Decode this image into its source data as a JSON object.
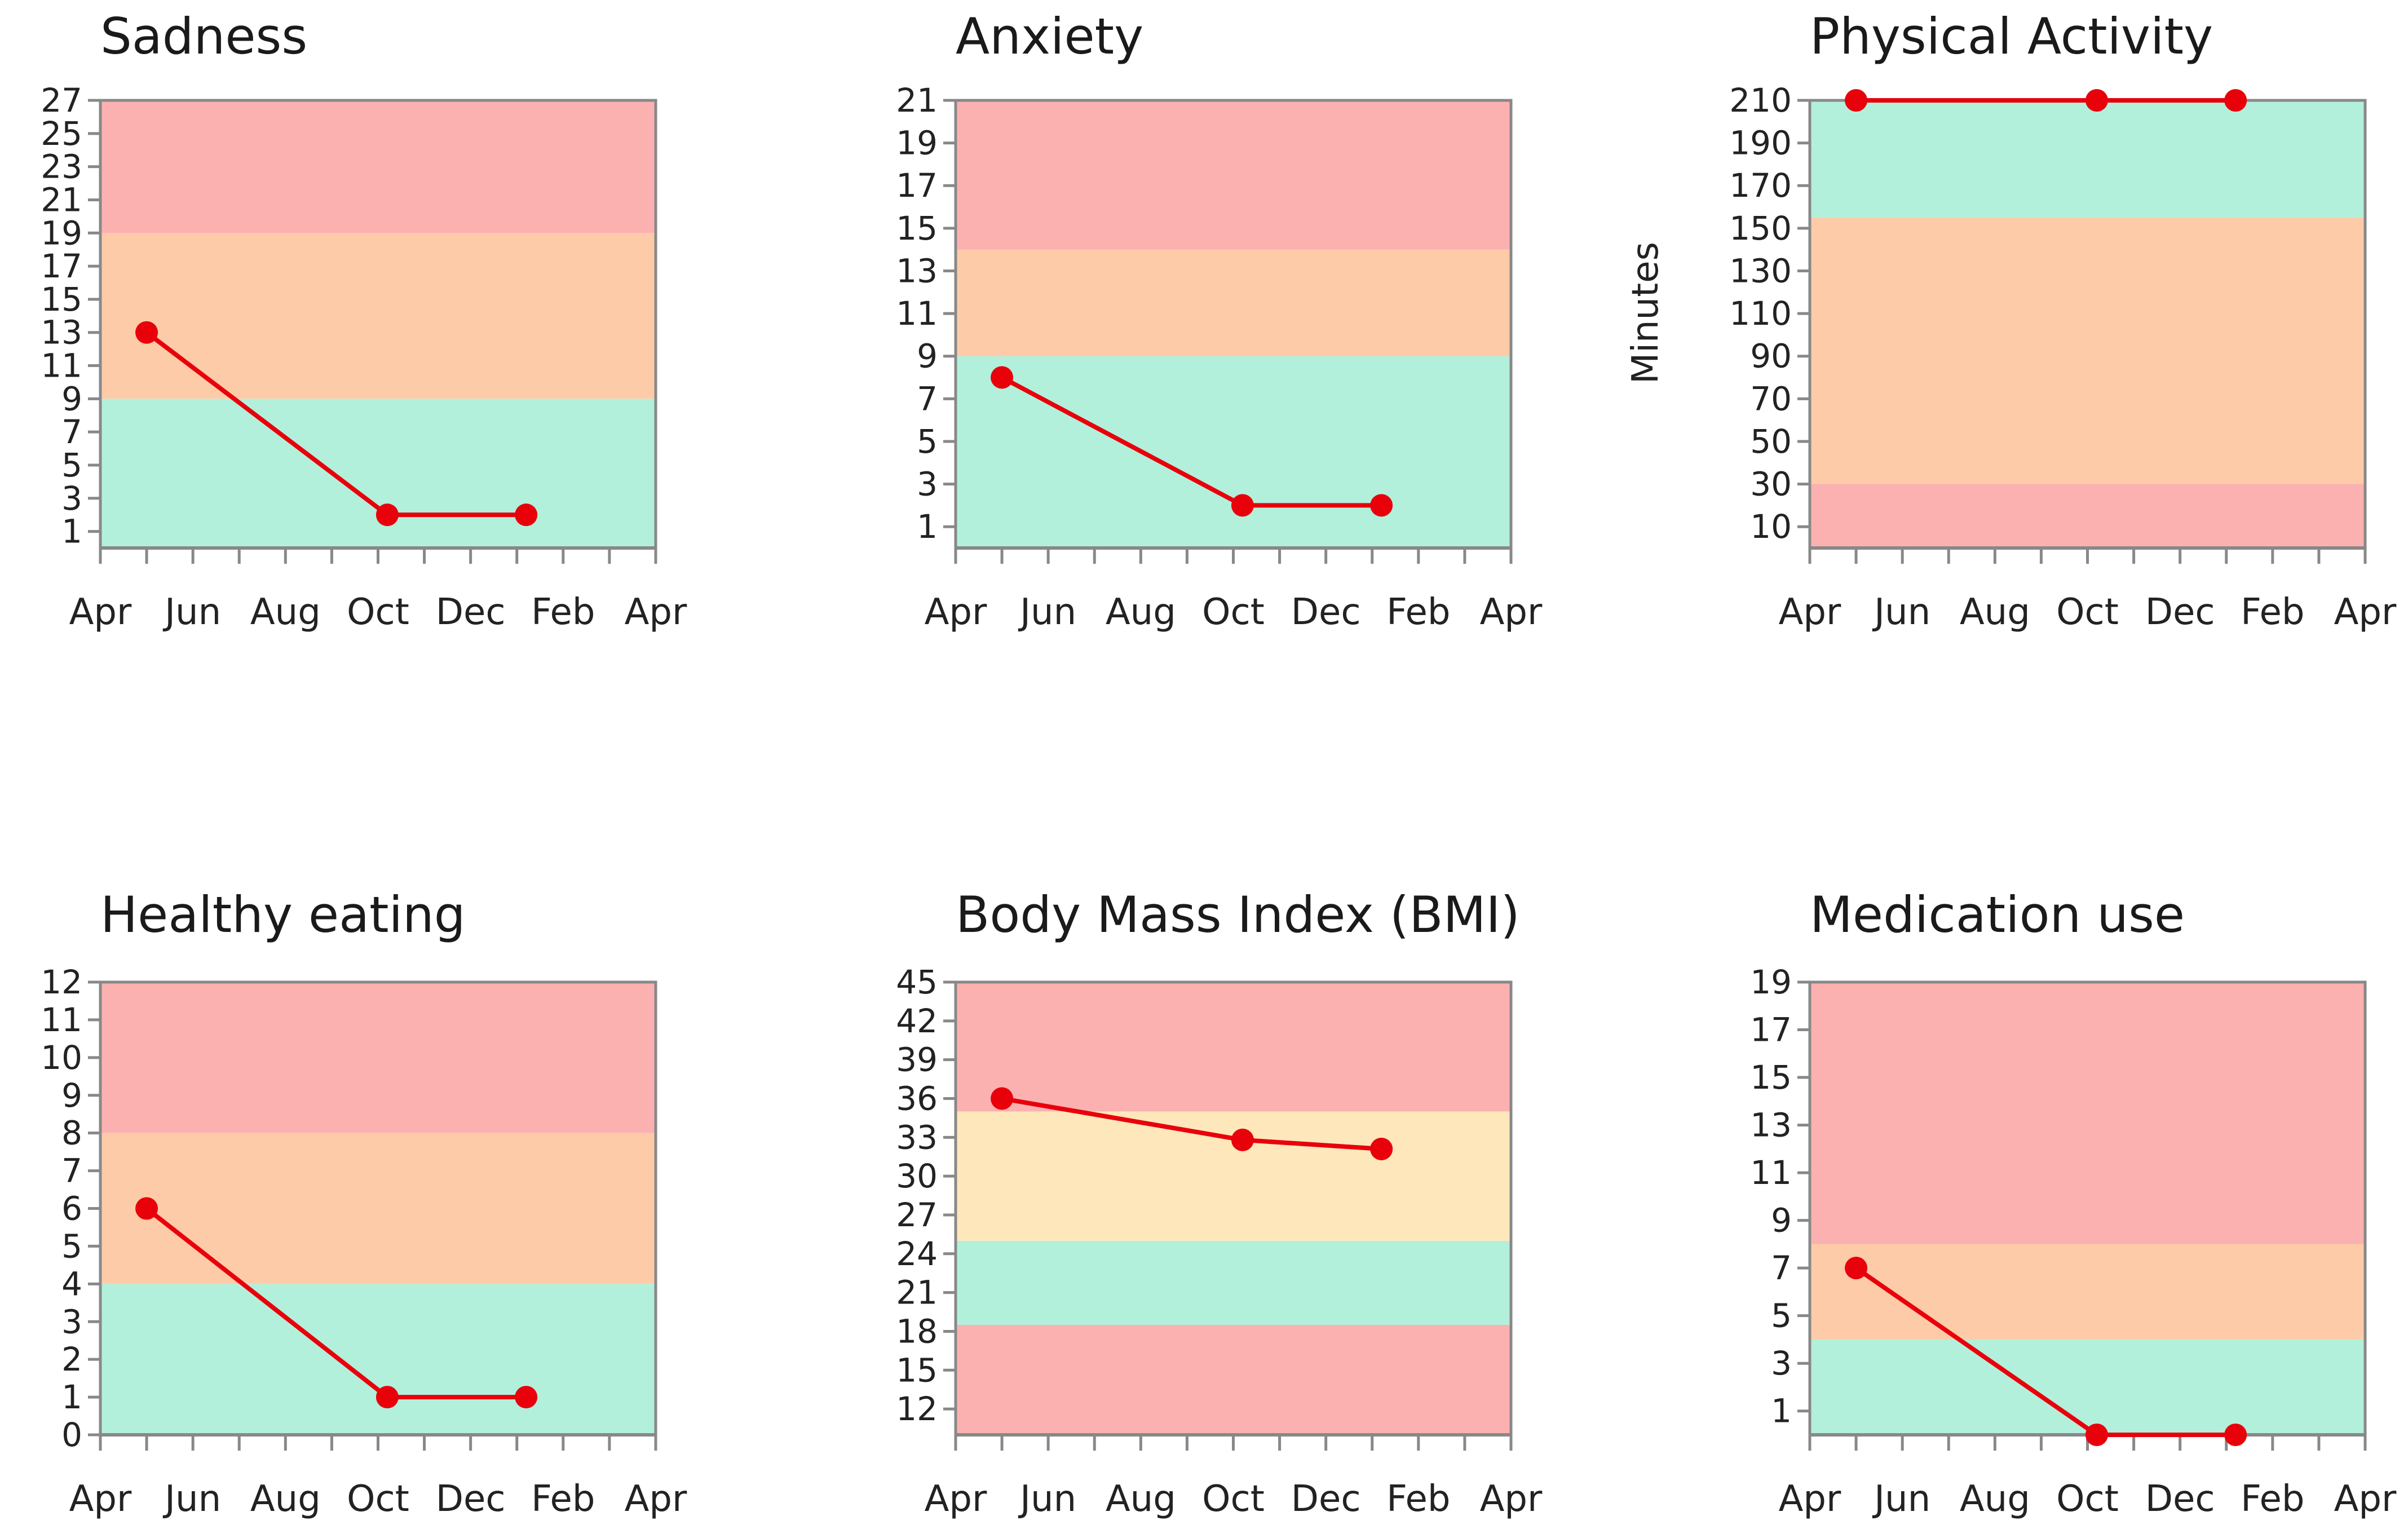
{
  "colors": {
    "red_zone": "#fcb1b1",
    "orange_zone": "#fdcba8",
    "yellow_zone": "#fee7bb",
    "green_zone": "#b2f0dc",
    "line": "#e8000b",
    "axis": "#888888"
  },
  "chart_data": [
    {
      "type": "line",
      "title": "Sadness",
      "ylabel": "",
      "ylim": [
        0,
        27
      ],
      "yticks": [
        1,
        3,
        5,
        7,
        9,
        11,
        13,
        15,
        17,
        19,
        21,
        23,
        25,
        27
      ],
      "x_month_ticks": 13,
      "x_labels": [
        "Apr",
        "Jun",
        "Aug",
        "Oct",
        "Dec",
        "Feb",
        "Apr"
      ],
      "bands": [
        {
          "from": 0,
          "to": 9,
          "zone": "green"
        },
        {
          "from": 9,
          "to": 19,
          "zone": "orange"
        },
        {
          "from": 19,
          "to": 27,
          "zone": "red"
        }
      ],
      "x": [
        1,
        6.2,
        9.2
      ],
      "values": [
        13,
        2,
        2
      ]
    },
    {
      "type": "line",
      "title": "Anxiety",
      "ylabel": "",
      "ylim": [
        0,
        21
      ],
      "yticks": [
        1,
        3,
        5,
        7,
        9,
        11,
        13,
        15,
        17,
        19,
        21
      ],
      "x_month_ticks": 13,
      "x_labels": [
        "Apr",
        "Jun",
        "Aug",
        "Oct",
        "Dec",
        "Feb",
        "Apr"
      ],
      "bands": [
        {
          "from": 0,
          "to": 9,
          "zone": "green"
        },
        {
          "from": 9,
          "to": 14,
          "zone": "orange"
        },
        {
          "from": 14,
          "to": 21,
          "zone": "red"
        }
      ],
      "x": [
        1,
        6.2,
        9.2
      ],
      "values": [
        8,
        2,
        2
      ]
    },
    {
      "type": "line",
      "title": "Physical Activity",
      "ylabel": "Minutes",
      "ylim": [
        0,
        210
      ],
      "yticks": [
        10,
        30,
        50,
        70,
        90,
        110,
        130,
        150,
        170,
        190,
        210
      ],
      "x_month_ticks": 13,
      "x_labels": [
        "Apr",
        "Jun",
        "Aug",
        "Oct",
        "Dec",
        "Feb",
        "Apr"
      ],
      "bands": [
        {
          "from": 0,
          "to": 30,
          "zone": "red"
        },
        {
          "from": 30,
          "to": 155,
          "zone": "orange"
        },
        {
          "from": 155,
          "to": 210,
          "zone": "green"
        }
      ],
      "x": [
        1,
        6.2,
        9.2
      ],
      "values": [
        210,
        210,
        210
      ]
    },
    {
      "type": "line",
      "title": "Healthy eating",
      "ylabel": "",
      "ylim": [
        0,
        12
      ],
      "yticks": [
        0,
        1,
        2,
        3,
        4,
        5,
        6,
        7,
        8,
        9,
        10,
        11,
        12
      ],
      "x_month_ticks": 13,
      "x_labels": [
        "Apr",
        "Jun",
        "Aug",
        "Oct",
        "Dec",
        "Feb",
        "Apr"
      ],
      "bands": [
        {
          "from": 0,
          "to": 4,
          "zone": "green"
        },
        {
          "from": 4,
          "to": 8,
          "zone": "orange"
        },
        {
          "from": 8,
          "to": 12,
          "zone": "red"
        }
      ],
      "x": [
        1,
        6.2,
        9.2
      ],
      "values": [
        6,
        1,
        1
      ]
    },
    {
      "type": "line",
      "title": "Body Mass Index (BMI)",
      "ylabel": "",
      "ylim": [
        10,
        45
      ],
      "yticks": [
        12,
        15,
        18,
        21,
        24,
        27,
        30,
        33,
        36,
        39,
        42,
        45
      ],
      "x_month_ticks": 13,
      "x_labels": [
        "Apr",
        "Jun",
        "Aug",
        "Oct",
        "Dec",
        "Feb",
        "Apr"
      ],
      "bands": [
        {
          "from": 10,
          "to": 18.5,
          "zone": "red"
        },
        {
          "from": 18.5,
          "to": 25,
          "zone": "green"
        },
        {
          "from": 25,
          "to": 35,
          "zone": "yellow"
        },
        {
          "from": 35,
          "to": 45,
          "zone": "red"
        }
      ],
      "x": [
        1,
        6.2,
        9.2
      ],
      "values": [
        36,
        32.8,
        32.1
      ]
    },
    {
      "type": "line",
      "title": "Medication use",
      "ylabel": "",
      "ylim": [
        0,
        19
      ],
      "yticks": [
        1,
        3,
        5,
        7,
        9,
        11,
        13,
        15,
        17,
        19
      ],
      "x_month_ticks": 13,
      "x_labels": [
        "Apr",
        "Jun",
        "Aug",
        "Oct",
        "Dec",
        "Feb",
        "Apr"
      ],
      "bands": [
        {
          "from": 0,
          "to": 4,
          "zone": "green"
        },
        {
          "from": 4,
          "to": 8,
          "zone": "orange"
        },
        {
          "from": 8,
          "to": 19,
          "zone": "red"
        }
      ],
      "x": [
        1,
        6.2,
        9.2
      ],
      "values": [
        7,
        0,
        0
      ]
    }
  ]
}
